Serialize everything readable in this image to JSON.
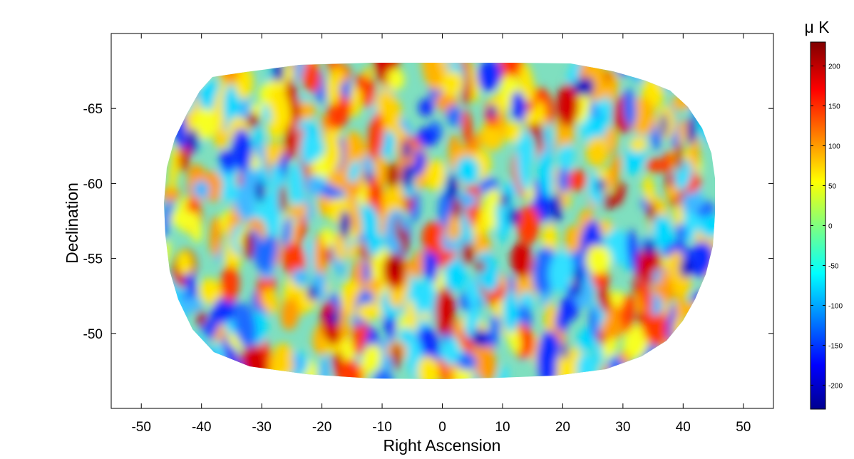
{
  "chart_data": {
    "type": "heatmap",
    "title": "",
    "xlabel": "Right Ascension",
    "ylabel": "Declination",
    "xlim": [
      -55,
      55
    ],
    "ylim": [
      -45,
      -70
    ],
    "x_ticks": [
      -50,
      -40,
      -30,
      -20,
      -10,
      0,
      10,
      20,
      30,
      40,
      50
    ],
    "y_ticks": [
      -65,
      -60,
      -55,
      -50
    ],
    "colorbar": {
      "unit": "μ K",
      "range": [
        -230,
        230
      ],
      "ticks": [
        200,
        150,
        100,
        50,
        0,
        -50,
        -100,
        -150,
        -200
      ],
      "colormap": "jet"
    },
    "field": {
      "description_note": "",
      "ra_range": [
        -46,
        46
      ],
      "dec_range": [
        -47.5,
        -68
      ]
    },
    "colors": {
      "cmap_stops": [
        "#00008f",
        "#0000ff",
        "#00ffff",
        "#ffff00",
        "#ff0000",
        "#800000"
      ]
    }
  }
}
